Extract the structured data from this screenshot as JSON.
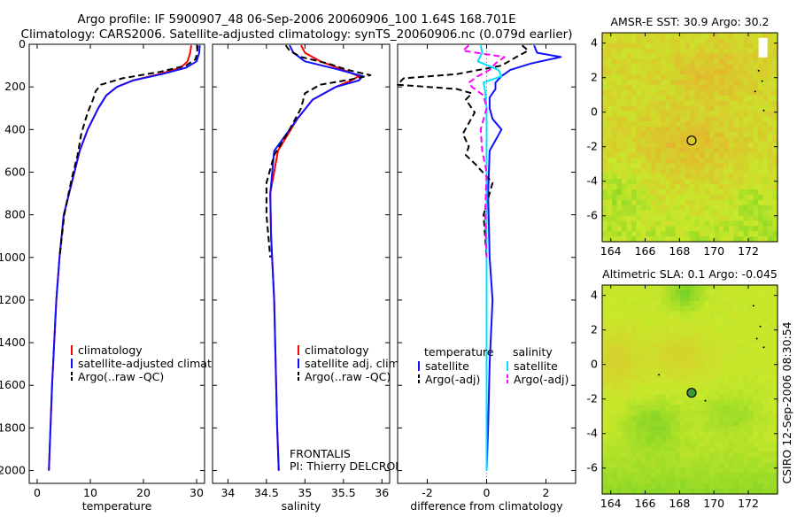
{
  "header": {
    "line1": "Argo profile: IF 5900907_48 06-Sep-2006 20060906_100 1.64S 168.701E",
    "line2": "Climatology: CARS2006. Satellite-adjusted climatology: synTS_20060906.nc (0.079d earlier)"
  },
  "side_stamp": "CSIRO 12-Sep-2006 08:30:54",
  "colors": {
    "climatology": "#ff0000",
    "satellite": "#1010ff",
    "satellite_salinity": "#00e0ff",
    "argo": "#000000",
    "argo_salinity": "#ff00ff",
    "map_low": "#1fb81f",
    "map_mid": "#c8e82a",
    "map_high": "#f0a030"
  },
  "chart_data": [
    {
      "type": "line",
      "name": "temperature-panel",
      "xlabel": "temperature",
      "ylabel": "",
      "xlim": [
        -1.5,
        31.5
      ],
      "ylim": [
        2060,
        0
      ],
      "xticks": [
        0,
        10,
        20,
        30
      ],
      "yticks": [
        0,
        200,
        400,
        600,
        800,
        1000,
        1200,
        1400,
        1600,
        1800,
        2000
      ],
      "legend": [
        "climatology",
        "satellite-adjusted climatology",
        "Argo(..raw -QC)"
      ],
      "series": [
        {
          "name": "climatology",
          "style": "solid",
          "color": "#ff0000",
          "depth": [
            5,
            40,
            80,
            110,
            140,
            170,
            200,
            240,
            300,
            400,
            500,
            600,
            800,
            1000,
            1200,
            1400,
            1600,
            1800,
            2000
          ],
          "values": [
            29.0,
            28.8,
            28.3,
            27.0,
            23.0,
            18.0,
            15.0,
            13.0,
            11.5,
            9.5,
            8.0,
            7.0,
            5.0,
            4.2,
            3.6,
            3.2,
            2.8,
            2.5,
            2.2
          ]
        },
        {
          "name": "satellite-adjusted climatology",
          "style": "solid",
          "color": "#1010ff",
          "depth": [
            5,
            40,
            80,
            110,
            140,
            170,
            200,
            240,
            300,
            400,
            500,
            600,
            800,
            1000,
            1200,
            1400,
            1600,
            1800,
            2000
          ],
          "values": [
            30.6,
            30.5,
            30.0,
            28.0,
            23.5,
            18.0,
            15.0,
            13.0,
            11.5,
            9.5,
            8.0,
            7.0,
            5.0,
            4.2,
            3.6,
            3.2,
            2.8,
            2.5,
            2.2
          ]
        },
        {
          "name": "Argo(..raw -QC)",
          "style": "dashed",
          "color": "#000000",
          "depth": [
            5,
            40,
            70,
            100,
            130,
            160,
            190,
            220,
            260,
            320,
            420,
            520,
            640,
            800,
            1000
          ],
          "values": [
            30.2,
            30.1,
            29.8,
            28.0,
            23.0,
            16.0,
            12.0,
            11.0,
            10.5,
            9.5,
            8.3,
            7.6,
            6.4,
            5.1,
            4.2
          ]
        }
      ]
    },
    {
      "type": "line",
      "name": "salinity-panel",
      "xlabel": "salinity",
      "xlim": [
        33.8,
        36.1
      ],
      "ylim": [
        2060,
        0
      ],
      "xticks": [
        34,
        34.5,
        35,
        35.5,
        36
      ],
      "legend": [
        "climatology",
        "satellite adj. clim.",
        "Argo(..raw -QC)"
      ],
      "annotation": [
        "FRONTALIS",
        "PI: Thierry DELCROIX"
      ],
      "series": [
        {
          "name": "climatology",
          "style": "solid",
          "color": "#ff0000",
          "depth": [
            5,
            40,
            80,
            120,
            150,
            170,
            200,
            260,
            350,
            500,
            700,
            900,
            1200,
            1500,
            1800,
            2000
          ],
          "values": [
            34.95,
            35.0,
            35.2,
            35.5,
            35.7,
            35.6,
            35.4,
            35.1,
            34.9,
            34.65,
            34.55,
            34.56,
            34.6,
            34.62,
            34.64,
            34.66
          ]
        },
        {
          "name": "satellite adj. clim.",
          "style": "solid",
          "color": "#1010ff",
          "depth": [
            5,
            40,
            80,
            120,
            150,
            170,
            200,
            260,
            350,
            500,
            700,
            900,
            1200,
            1500,
            1800,
            2000
          ],
          "values": [
            34.8,
            34.85,
            35.0,
            35.45,
            35.75,
            35.7,
            35.4,
            35.1,
            34.9,
            34.6,
            34.55,
            34.56,
            34.6,
            34.62,
            34.64,
            34.66
          ]
        },
        {
          "name": "Argo(..raw -QC)",
          "style": "dashed",
          "color": "#000000",
          "depth": [
            5,
            30,
            60,
            90,
            120,
            145,
            165,
            190,
            230,
            300,
            400,
            520,
            650,
            800,
            1000
          ],
          "values": [
            34.75,
            34.8,
            34.95,
            35.3,
            35.55,
            35.85,
            35.6,
            35.2,
            35.0,
            34.95,
            34.8,
            34.6,
            34.5,
            34.5,
            34.55
          ]
        }
      ]
    },
    {
      "type": "line",
      "name": "difference-panel",
      "xlabel": "difference from climatology",
      "xlim": [
        -3.0,
        3.0
      ],
      "ylim": [
        2060,
        0
      ],
      "xticks": [
        -2,
        0,
        2
      ],
      "legend_titles": [
        "temperature",
        "salinity"
      ],
      "legend": [
        "satellite",
        "Argo(-adj)",
        "satellite",
        "Argo(-adj)"
      ],
      "series": [
        {
          "name": "satellite",
          "group": "temperature",
          "style": "solid",
          "color": "#1010ff",
          "depth": [
            5,
            40,
            60,
            90,
            120,
            150,
            180,
            210,
            250,
            300,
            350,
            400,
            500,
            700,
            1000,
            1200,
            1500,
            1800,
            2000
          ],
          "values": [
            1.6,
            1.7,
            2.5,
            1.5,
            0.8,
            0.5,
            0.3,
            0.3,
            0.1,
            0.1,
            0.2,
            0.5,
            0.1,
            0.05,
            0.1,
            0.2,
            0.1,
            0.05,
            0.0
          ]
        },
        {
          "name": "Argo(-adj)",
          "group": "temperature",
          "style": "dashed",
          "color": "#000000",
          "depth": [
            5,
            30,
            60,
            100,
            140,
            160,
            190,
            210,
            230,
            260,
            320,
            420,
            480,
            520,
            560,
            650,
            800,
            1000
          ],
          "values": [
            1.2,
            1.4,
            1.0,
            0.5,
            -1.0,
            -2.8,
            -3.0,
            -1.0,
            -0.5,
            -0.7,
            -0.4,
            -0.8,
            -0.6,
            -0.7,
            -0.4,
            0.2,
            -0.1,
            0.0
          ]
        },
        {
          "name": "satellite",
          "group": "salinity",
          "style": "solid",
          "color": "#00e0ff",
          "depth": [
            5,
            40,
            80,
            120,
            150,
            180,
            220,
            300,
            400,
            600,
            800,
            1200,
            1500,
            1800,
            2000
          ],
          "values": [
            -0.2,
            -0.15,
            -0.3,
            0.4,
            0.5,
            -0.1,
            -0.05,
            0.0,
            0.0,
            0.0,
            0.0,
            0.0,
            0.0,
            0.0,
            0.0
          ]
        },
        {
          "name": "Argo(-adj)",
          "group": "salinity",
          "style": "dashed",
          "color": "#ff00ff",
          "depth": [
            5,
            30,
            60,
            90,
            120,
            150,
            180,
            200,
            240,
            300,
            400,
            500,
            600,
            800,
            1000
          ],
          "values": [
            -0.6,
            -0.8,
            0.6,
            0.3,
            0.1,
            -0.3,
            -0.6,
            -0.5,
            -0.1,
            0.0,
            -0.2,
            -0.15,
            0.0,
            -0.05,
            0.0
          ]
        }
      ]
    },
    {
      "type": "heatmap",
      "name": "sst-map",
      "title": "AMSR-E SST: 30.9 Argo: 30.2",
      "xlim": [
        163.5,
        173.7
      ],
      "ylim": [
        -7.5,
        4.6
      ],
      "xticks": [
        164,
        166,
        168,
        170,
        172
      ],
      "yticks": [
        4,
        2,
        0,
        -2,
        -4,
        -6
      ],
      "colors": [
        "#1fb81f",
        "#c8e82a",
        "#f0a030"
      ],
      "marker": {
        "lon": 168.701,
        "lat": -1.64,
        "filled": false
      }
    },
    {
      "type": "heatmap",
      "name": "sla-map",
      "title": "Altimetric SLA: 0.1 Argo: -0.045",
      "xlim": [
        163.5,
        173.7
      ],
      "ylim": [
        -7.5,
        4.6
      ],
      "xticks": [
        164,
        166,
        168,
        170,
        172
      ],
      "yticks": [
        4,
        2,
        0,
        -2,
        -4,
        -6
      ],
      "colors": [
        "#1fb81f",
        "#c8e82a",
        "#f0a030"
      ],
      "marker": {
        "lon": 168.701,
        "lat": -1.64,
        "filled": true
      }
    }
  ]
}
